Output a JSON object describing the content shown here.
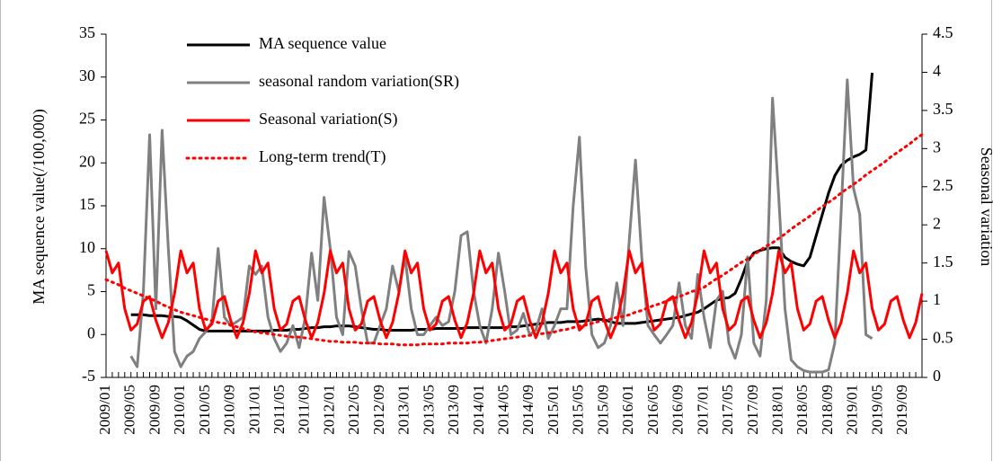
{
  "chart_data": {
    "type": "line",
    "y_label": "MA sequence value(/100,000)",
    "y2_label": "Seasonal variation",
    "categories": [
      "2009/01",
      null,
      null,
      null,
      "2009/05",
      null,
      null,
      null,
      "2009/09",
      null,
      null,
      null,
      "2010/01",
      null,
      null,
      null,
      "2010/05",
      null,
      null,
      null,
      "2010/09",
      null,
      null,
      null,
      "2011/01",
      null,
      null,
      null,
      "2011/05",
      null,
      null,
      null,
      "2011/09",
      null,
      null,
      null,
      "2012/01",
      null,
      null,
      null,
      "2012/05",
      null,
      null,
      null,
      "2012/09",
      null,
      null,
      null,
      "2013/01",
      null,
      null,
      null,
      "2013/05",
      null,
      null,
      null,
      "2013/09",
      null,
      null,
      null,
      "2014/01",
      null,
      null,
      null,
      "2014/05",
      null,
      null,
      null,
      "2014/09",
      null,
      null,
      null,
      "2015/01",
      null,
      null,
      null,
      "2015/05",
      null,
      null,
      null,
      "2015/09",
      null,
      null,
      null,
      "2016/01",
      null,
      null,
      null,
      "2016/05",
      null,
      null,
      null,
      "2016/09",
      null,
      null,
      null,
      "2017/01",
      null,
      null,
      null,
      "2017/05",
      null,
      null,
      null,
      "2017/09",
      null,
      null,
      null,
      "2018/01",
      null,
      null,
      null,
      "2018/05",
      null,
      null,
      null,
      "2018/09",
      null,
      null,
      null,
      "2019/01",
      null,
      null,
      null,
      "2019/05",
      null,
      null,
      null,
      "2019/09",
      null,
      null,
      null
    ],
    "series": [
      {
        "name": "MA sequence value",
        "color": "#000000",
        "line_style": "solid",
        "values": [
          null,
          null,
          null,
          null,
          2.3,
          2.3,
          2.3,
          2.2,
          2.2,
          2.2,
          2.1,
          2.1,
          2.0,
          1.6,
          1.1,
          0.6,
          0.4,
          0.4,
          0.4,
          0.4,
          0.4,
          0.4,
          0.4,
          0.4,
          0.4,
          0.4,
          0.4,
          0.5,
          0.5,
          0.5,
          0.6,
          0.6,
          0.7,
          0.8,
          0.8,
          0.9,
          0.9,
          1.0,
          1.0,
          1.0,
          0.9,
          0.8,
          0.7,
          0.6,
          0.6,
          0.5,
          0.5,
          0.5,
          0.5,
          0.5,
          0.6,
          0.6,
          0.6,
          0.7,
          0.7,
          0.7,
          0.7,
          0.7,
          0.8,
          0.8,
          0.8,
          0.8,
          0.8,
          0.8,
          0.8,
          0.9,
          0.9,
          1.0,
          1.1,
          1.2,
          1.3,
          1.4,
          1.4,
          1.4,
          1.5,
          1.5,
          1.5,
          1.6,
          1.7,
          1.8,
          1.7,
          1.5,
          1.3,
          1.3,
          1.3,
          1.3,
          1.4,
          1.5,
          1.6,
          1.7,
          1.8,
          1.9,
          2.0,
          2.2,
          2.4,
          2.6,
          3.0,
          3.5,
          4.0,
          4.2,
          4.3,
          4.8,
          6.5,
          8.5,
          9.5,
          9.8,
          10.0,
          10.1,
          10.1,
          9.0,
          8.5,
          8.2,
          8.0,
          9.0,
          11.5,
          14.0,
          16.5,
          18.5,
          19.7,
          20.3,
          20.7,
          21.0,
          21.5,
          30.5,
          null,
          null,
          null,
          null,
          null,
          null,
          null,
          null
        ]
      },
      {
        "name": "seasonal random variation(SR)",
        "color": "#808080",
        "line_style": "solid",
        "axis": "y2",
        "values": [
          null,
          null,
          null,
          null,
          0.28,
          0.14,
          1.13,
          3.18,
          0.9,
          3.24,
          1.69,
          0.34,
          0.14,
          0.28,
          0.34,
          0.51,
          0.6,
          0.73,
          1.69,
          0.79,
          0.68,
          0.73,
          0.79,
          1.46,
          1.35,
          1.46,
          0.79,
          0.51,
          0.34,
          0.45,
          0.68,
          0.39,
          0.79,
          1.63,
          1.01,
          2.36,
          1.69,
          0.79,
          0.56,
          1.65,
          1.46,
          0.9,
          0.45,
          0.45,
          0.68,
          0.9,
          1.46,
          1.13,
          1.58,
          0.9,
          0.56,
          0.56,
          0.68,
          0.79,
          0.68,
          0.73,
          1.13,
          1.86,
          1.91,
          1.13,
          0.68,
          0.45,
          0.9,
          1.63,
          1.13,
          0.56,
          0.62,
          0.84,
          0.56,
          0.62,
          0.9,
          0.51,
          0.68,
          0.9,
          0.9,
          2.25,
          3.15,
          1.46,
          0.56,
          0.39,
          0.45,
          0.68,
          1.24,
          0.68,
          1.8,
          2.85,
          1.58,
          0.68,
          0.56,
          0.45,
          0.56,
          0.68,
          1.24,
          0.68,
          0.51,
          1.35,
          0.79,
          0.39,
          1.01,
          1.13,
          0.45,
          0.25,
          0.56,
          1.58,
          0.45,
          0.28,
          1.01,
          3.66,
          2.36,
          0.9,
          0.23,
          0.14,
          0.09,
          0.07,
          0.07,
          0.07,
          0.1,
          0.45,
          2.14,
          3.9,
          2.48,
          2.14,
          0.56,
          0.51,
          null,
          null,
          null,
          null,
          null,
          null,
          null,
          null
        ]
      },
      {
        "name": "Seasonal variation(S)",
        "color": "#ff0000",
        "line_style": "solid",
        "axis": "y2",
        "values": [
          1.66,
          1.37,
          1.5,
          0.9,
          0.62,
          0.7,
          1.0,
          1.06,
          0.75,
          0.52,
          0.72,
          1.1,
          1.66,
          1.37,
          1.5,
          0.9,
          0.62,
          0.7,
          1.0,
          1.06,
          0.75,
          0.52,
          0.72,
          1.1,
          1.66,
          1.37,
          1.5,
          0.9,
          0.62,
          0.7,
          1.0,
          1.06,
          0.75,
          0.52,
          0.72,
          1.1,
          1.66,
          1.37,
          1.5,
          0.9,
          0.62,
          0.7,
          1.0,
          1.06,
          0.75,
          0.52,
          0.72,
          1.1,
          1.66,
          1.37,
          1.5,
          0.9,
          0.62,
          0.7,
          1.0,
          1.06,
          0.75,
          0.52,
          0.72,
          1.1,
          1.66,
          1.37,
          1.5,
          0.9,
          0.62,
          0.7,
          1.0,
          1.06,
          0.75,
          0.52,
          0.72,
          1.1,
          1.66,
          1.37,
          1.5,
          0.9,
          0.62,
          0.7,
          1.0,
          1.06,
          0.75,
          0.52,
          0.72,
          1.1,
          1.66,
          1.37,
          1.5,
          0.9,
          0.62,
          0.7,
          1.0,
          1.06,
          0.75,
          0.52,
          0.72,
          1.1,
          1.66,
          1.37,
          1.5,
          0.9,
          0.62,
          0.7,
          1.0,
          1.06,
          0.75,
          0.52,
          0.72,
          1.1,
          1.66,
          1.37,
          1.5,
          0.9,
          0.62,
          0.7,
          1.0,
          1.06,
          0.75,
          0.52,
          0.72,
          1.1,
          1.66,
          1.37,
          1.5,
          0.9,
          0.62,
          0.7,
          1.0,
          1.06,
          0.75,
          0.52,
          0.72,
          1.1
        ]
      },
      {
        "name": "Long-term trend(T)",
        "color": "#ff0000",
        "line_style": "dotted",
        "values": [
          6.4,
          6.1,
          5.8,
          5.4,
          5.1,
          4.8,
          4.5,
          4.2,
          3.9,
          3.5,
          3.2,
          2.9,
          2.6,
          2.4,
          2.2,
          2.0,
          1.8,
          1.6,
          1.4,
          1.3,
          1.1,
          0.9,
          0.7,
          0.5,
          0.3,
          0.2,
          0.1,
          0.0,
          -0.1,
          -0.2,
          -0.3,
          -0.3,
          -0.4,
          -0.5,
          -0.6,
          -0.7,
          -0.8,
          -0.8,
          -0.9,
          -0.9,
          -0.9,
          -1.0,
          -1.0,
          -1.0,
          -1.1,
          -1.1,
          -1.1,
          -1.2,
          -1.2,
          -1.2,
          -1.2,
          -1.1,
          -1.1,
          -1.1,
          -1.1,
          -1.0,
          -1.0,
          -1.0,
          -1.0,
          -0.9,
          -0.9,
          -0.8,
          -0.7,
          -0.6,
          -0.5,
          -0.4,
          -0.3,
          -0.2,
          -0.1,
          0.0,
          0.1,
          0.2,
          0.3,
          0.5,
          0.6,
          0.8,
          1.0,
          1.1,
          1.3,
          1.5,
          1.6,
          1.8,
          2.0,
          2.1,
          2.3,
          2.6,
          2.8,
          3.1,
          3.4,
          3.6,
          3.9,
          4.2,
          4.4,
          4.7,
          5.0,
          5.2,
          5.5,
          6.0,
          6.5,
          6.9,
          7.4,
          7.9,
          8.4,
          8.8,
          9.3,
          9.8,
          10.3,
          10.7,
          11.2,
          11.7,
          12.3,
          12.8,
          13.3,
          13.8,
          14.4,
          14.9,
          15.4,
          15.9,
          16.5,
          17.0,
          17.5,
          18.0,
          18.6,
          19.1,
          19.6,
          20.1,
          20.7,
          21.2,
          21.7,
          22.2,
          22.8,
          23.3
        ]
      }
    ],
    "ylim": [
      -5,
      35
    ],
    "yticks": [
      -5,
      0,
      5,
      10,
      15,
      20,
      25,
      30,
      35
    ],
    "y2lim": [
      0,
      4.5
    ],
    "y2ticks": [
      0,
      0.5,
      1,
      1.5,
      2,
      2.5,
      3,
      3.5,
      4,
      4.5
    ],
    "grid": false,
    "legend_position": "upper left"
  }
}
